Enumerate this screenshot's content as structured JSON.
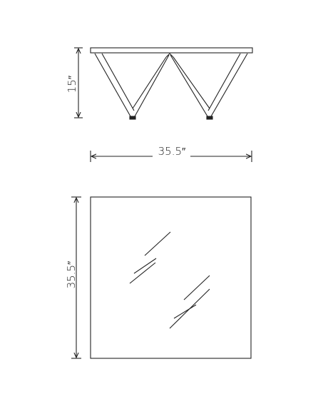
{
  "drawing": {
    "views": {
      "side_elevation": {
        "height_label": "15″",
        "width_label": "35.5″"
      },
      "top_plan": {
        "depth_label": "35.5″"
      }
    },
    "colors": {
      "line": "#222222",
      "background": "#ffffff"
    }
  }
}
